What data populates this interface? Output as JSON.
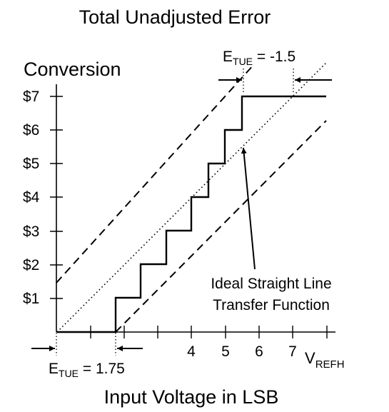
{
  "title": "Total Unadjusted Error",
  "y_axis_title": "Conversion",
  "x_axis_title": "Input Voltage in LSB",
  "y_tick_labels": [
    "$1",
    "$2",
    "$3",
    "$4",
    "$5",
    "$6",
    "$7"
  ],
  "x_tick_labels": [
    "4",
    "5",
    "6",
    "7"
  ],
  "x_end_label": {
    "main": "V",
    "sub": "REFH"
  },
  "tue_top": {
    "main": "E",
    "sub": "TUE",
    "rest": " = -1.5"
  },
  "tue_bottom": {
    "main": "E",
    "sub": "TUE",
    "rest": " = 1.75"
  },
  "annotation": {
    "line1": "Ideal Straight Line",
    "line2": "Transfer Function"
  },
  "colors": {
    "ink": "#000000",
    "background": "#ffffff"
  }
}
